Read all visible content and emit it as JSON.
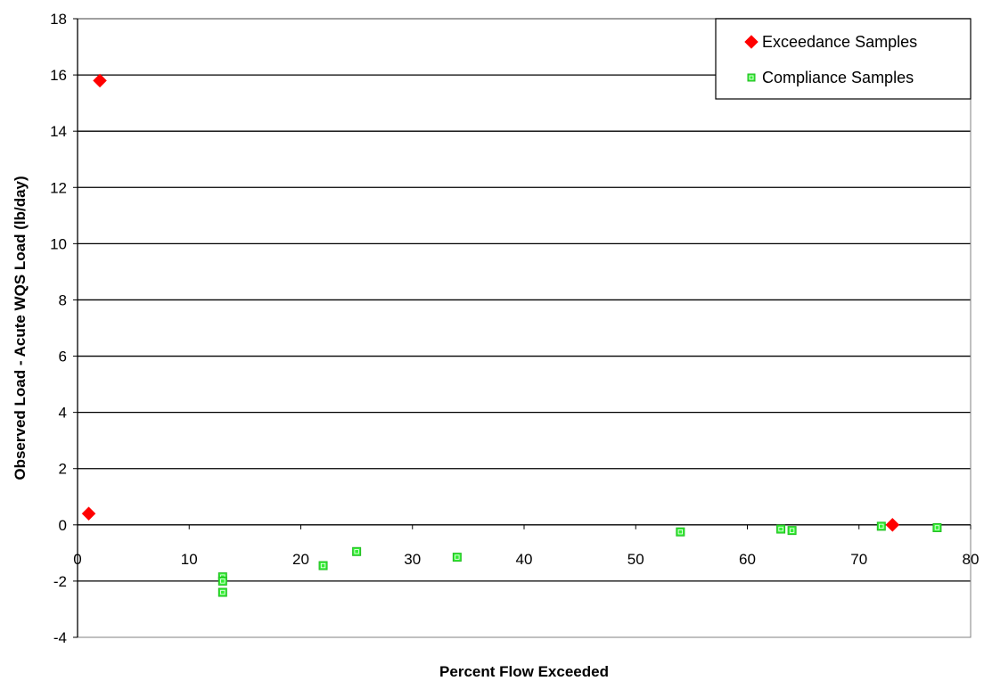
{
  "chart_data": {
    "type": "scatter",
    "xlabel": "Percent Flow Exceeded",
    "ylabel": "Observed Load - Acute WQS Load (lb/day)",
    "xlim": [
      0,
      80
    ],
    "ylim": [
      -4,
      18
    ],
    "xticks": [
      0,
      10,
      20,
      30,
      40,
      50,
      60,
      70,
      80
    ],
    "yticks": [
      -4,
      -2,
      0,
      2,
      4,
      6,
      8,
      10,
      12,
      14,
      16,
      18
    ],
    "grid": "horizontal",
    "legend_position": "top-right",
    "series": [
      {
        "name": "Exceedance Samples",
        "marker": "diamond",
        "color": "#ff0000",
        "points": [
          {
            "x": 1,
            "y": 0.4
          },
          {
            "x": 2,
            "y": 15.8
          },
          {
            "x": 73,
            "y": 0.0
          }
        ]
      },
      {
        "name": "Compliance Samples",
        "marker": "square",
        "color": "#33ee33",
        "points": [
          {
            "x": 13,
            "y": -1.85
          },
          {
            "x": 13,
            "y": -2.0
          },
          {
            "x": 13,
            "y": -2.4
          },
          {
            "x": 22,
            "y": -1.45
          },
          {
            "x": 25,
            "y": -0.95
          },
          {
            "x": 34,
            "y": -1.15
          },
          {
            "x": 54,
            "y": -0.25
          },
          {
            "x": 63,
            "y": -0.15
          },
          {
            "x": 64,
            "y": -0.2
          },
          {
            "x": 72,
            "y": -0.05
          },
          {
            "x": 77,
            "y": -0.1
          }
        ]
      }
    ]
  }
}
